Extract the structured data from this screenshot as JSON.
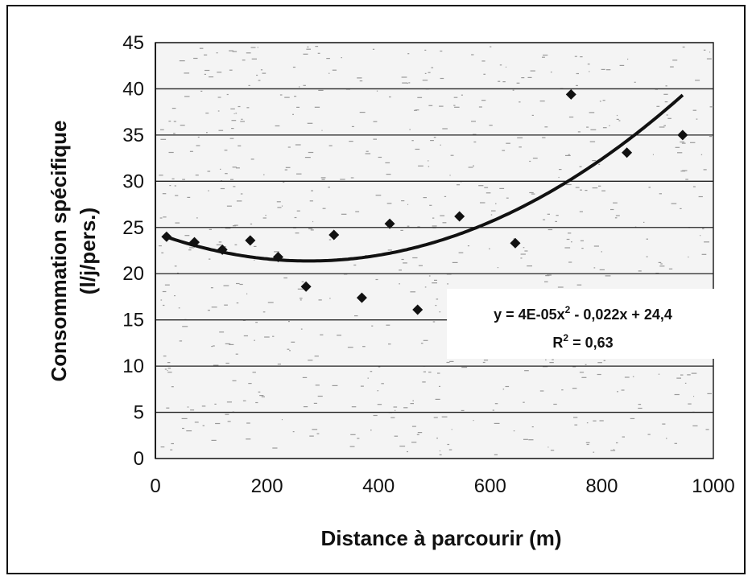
{
  "chart_data": {
    "type": "scatter",
    "xlabel": "Distance à parcourir (m)",
    "ylabel_line1": "Consommation spécifique",
    "ylabel_line2": "(l/j/pers.)",
    "xlim": [
      0,
      1000
    ],
    "ylim": [
      0,
      45
    ],
    "x_ticks": [
      0,
      200,
      400,
      600,
      800,
      1000
    ],
    "y_ticks": [
      0,
      5,
      10,
      15,
      20,
      25,
      30,
      35,
      40,
      45
    ],
    "grid": "horizontal",
    "points": [
      {
        "x": 20,
        "y": 24.0
      },
      {
        "x": 70,
        "y": 23.4
      },
      {
        "x": 120,
        "y": 22.6
      },
      {
        "x": 170,
        "y": 23.6
      },
      {
        "x": 220,
        "y": 21.8
      },
      {
        "x": 270,
        "y": 18.6
      },
      {
        "x": 320,
        "y": 24.2
      },
      {
        "x": 370,
        "y": 17.4
      },
      {
        "x": 420,
        "y": 25.4
      },
      {
        "x": 470,
        "y": 16.1
      },
      {
        "x": 545,
        "y": 26.2
      },
      {
        "x": 645,
        "y": 23.3
      },
      {
        "x": 745,
        "y": 39.4
      },
      {
        "x": 845,
        "y": 33.1
      },
      {
        "x": 945,
        "y": 35.0
      }
    ],
    "trendline": {
      "type": "polynomial",
      "coefficients": {
        "a": 4e-05,
        "b": -0.022,
        "c": 24.4
      },
      "x_range": [
        20,
        945
      ],
      "equation_prefix": "y = 4E-05x",
      "equation_exp": "2",
      "equation_suffix": " - 0,022x + 24,4",
      "r2_prefix": "R",
      "r2_exp": "2",
      "r2_suffix": " = 0,63"
    },
    "colors": {
      "points": "#111111",
      "trendline": "#111111",
      "grid": "#222222"
    }
  }
}
